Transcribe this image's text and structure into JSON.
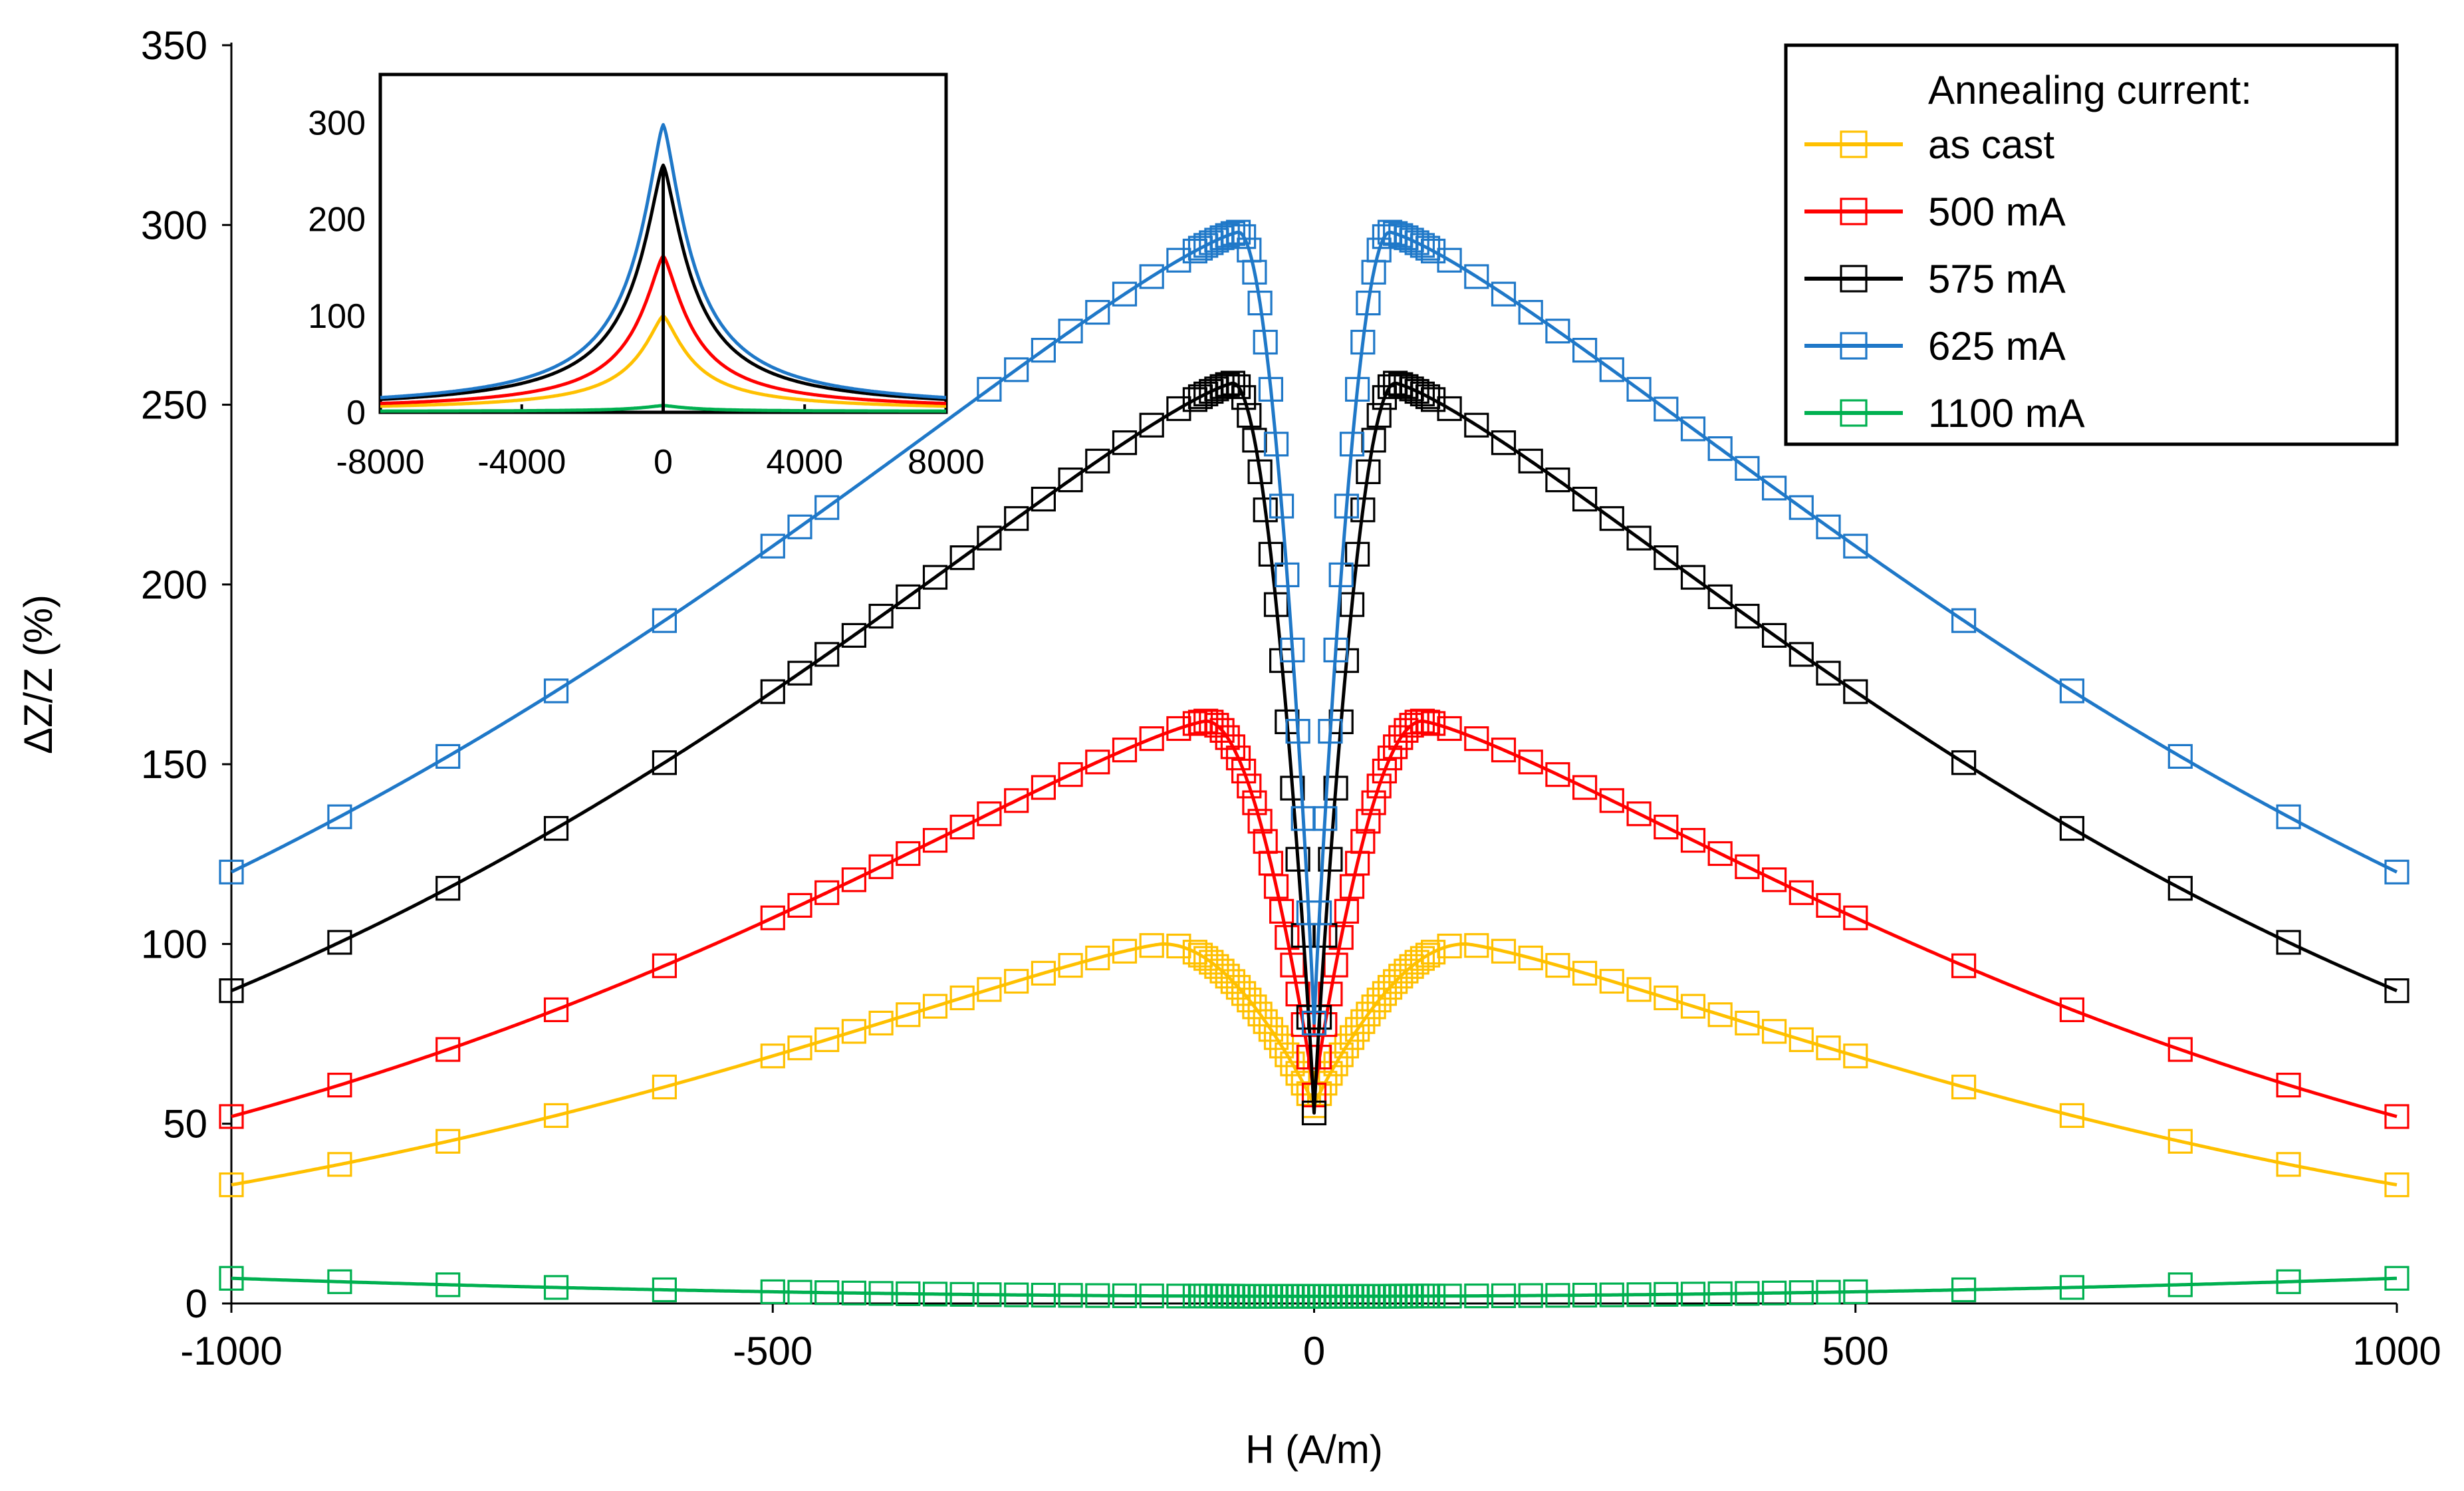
{
  "chart_data": {
    "type": "line",
    "title": "",
    "xlabel": "H (A/m)",
    "ylabel": "ΔZ/Z (%)",
    "xlim": [
      -1000,
      1000
    ],
    "ylim": [
      0,
      350
    ],
    "x_ticks": [
      "-1000",
      "-500",
      "0",
      "500",
      "1000"
    ],
    "y_ticks": [
      "0",
      "50",
      "100",
      "150",
      "200",
      "250",
      "300",
      "350"
    ],
    "grid": false,
    "legend": {
      "title": "Annealing current:",
      "placement": "top-right"
    },
    "series": [
      {
        "name": "as cast",
        "color": "#FFC000",
        "peak_h": 140,
        "peak": 100,
        "zero": 55,
        "edge": 33,
        "min_h": 0
      },
      {
        "name": "500 mA",
        "color": "#FF0000",
        "peak_h": 100,
        "peak": 162,
        "zero": 58,
        "edge": 52,
        "min_h": 5
      },
      {
        "name": "575 mA",
        "color": "#000000",
        "peak_h": 75,
        "peak": 256,
        "zero": 53,
        "edge": 87,
        "min_h": 5
      },
      {
        "name": "625 mA",
        "color": "#1F78C8",
        "peak_h": 70,
        "peak": 298,
        "zero": 78,
        "edge": 120,
        "min_h": 10
      },
      {
        "name": "1100 mA",
        "color": "#00B050",
        "peak_h": 0,
        "peak": 3,
        "zero": 2,
        "edge": 7,
        "min_h": 0
      }
    ],
    "inset": {
      "xlim": [
        -8000,
        8000
      ],
      "ylim": [
        0,
        350
      ],
      "x_ticks": [
        "-8000",
        "-4000",
        "0",
        "4000",
        "8000"
      ],
      "y_ticks": [
        "0",
        "100",
        "200",
        "300"
      ],
      "series_peaks": [
        {
          "name": "as cast",
          "color": "#FFC000",
          "peak": 100,
          "edge": 2
        },
        {
          "name": "500 mA",
          "color": "#FF0000",
          "peak": 162,
          "edge": 2
        },
        {
          "name": "575 mA",
          "color": "#000000",
          "peak": 256,
          "edge": 2
        },
        {
          "name": "625 mA",
          "color": "#1F78C8",
          "peak": 298,
          "edge": 2
        },
        {
          "name": "1100 mA",
          "color": "#00B050",
          "peak": 7,
          "edge": 1
        }
      ]
    }
  }
}
